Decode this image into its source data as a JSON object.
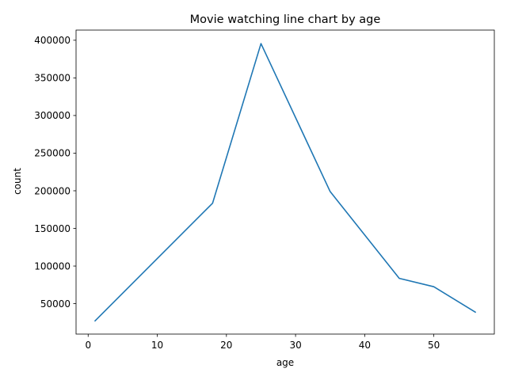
{
  "chart_data": {
    "type": "line",
    "title": "Movie watching line chart by age",
    "xlabel": "age",
    "ylabel": "count",
    "xlim": [
      -1.75,
      58.75
    ],
    "ylim": [
      9600,
      413500
    ],
    "xticks": [
      0,
      10,
      20,
      30,
      40,
      50
    ],
    "yticks": [
      50000,
      100000,
      150000,
      200000,
      250000,
      300000,
      350000,
      400000
    ],
    "grid": false,
    "series": [
      {
        "x": [
          1,
          18,
          25,
          35,
          45,
          50,
          56
        ],
        "y": [
          27211,
          183536,
          395556,
          199003,
          83633,
          72490,
          38780
        ],
        "color": "#1f77b4"
      }
    ]
  }
}
